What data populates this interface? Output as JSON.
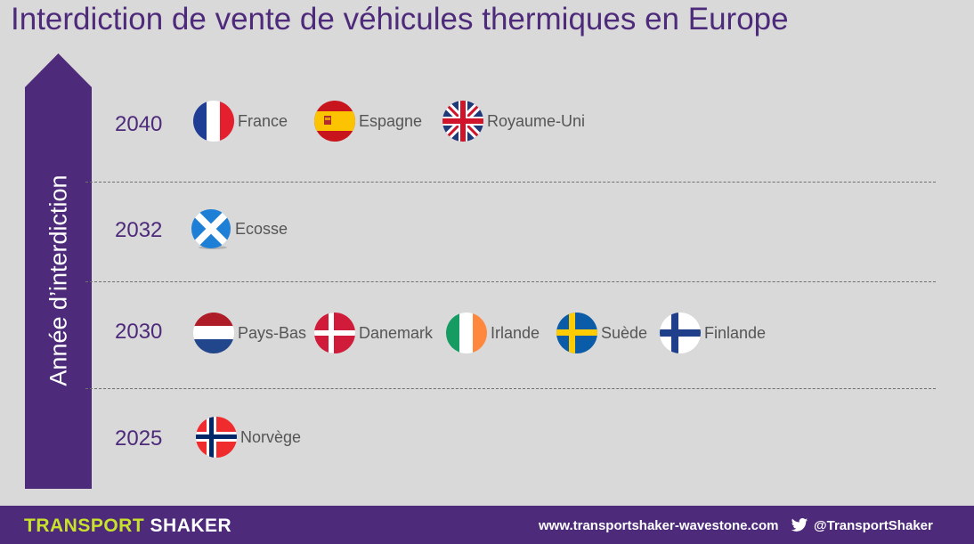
{
  "title": "Interdiction de vente de véhicules thermiques en Europe",
  "axis_label": "Année d’interdiction",
  "colors": {
    "accent": "#4e2a7a",
    "brand_green": "#c8e22b"
  },
  "rows": [
    {
      "year": "2040",
      "countries": [
        {
          "name": "France",
          "flag": "france-flag-icon"
        },
        {
          "name": "Espagne",
          "flag": "spain-flag-icon"
        },
        {
          "name": "Royaume-Uni",
          "flag": "uk-flag-icon"
        }
      ]
    },
    {
      "year": "2032",
      "countries": [
        {
          "name": "Ecosse",
          "flag": "scotland-flag-icon"
        }
      ]
    },
    {
      "year": "2030",
      "countries": [
        {
          "name": "Pays-Bas",
          "flag": "netherlands-flag-icon"
        },
        {
          "name": "Danemark",
          "flag": "denmark-flag-icon"
        },
        {
          "name": "Irlande",
          "flag": "ireland-flag-icon"
        },
        {
          "name": "Suède",
          "flag": "sweden-flag-icon"
        },
        {
          "name": "Finlande",
          "flag": "finland-flag-icon"
        }
      ]
    },
    {
      "year": "2025",
      "countries": [
        {
          "name": "Norvège",
          "flag": "norway-flag-icon"
        }
      ]
    }
  ],
  "footer": {
    "brand_part1": "TRANSPORT",
    "brand_part2": "SHAKER",
    "website": "www.transportshaker-wavestone.com",
    "twitter_icon": "twitter-bird-icon",
    "twitter_handle": "@TransportShaker"
  }
}
